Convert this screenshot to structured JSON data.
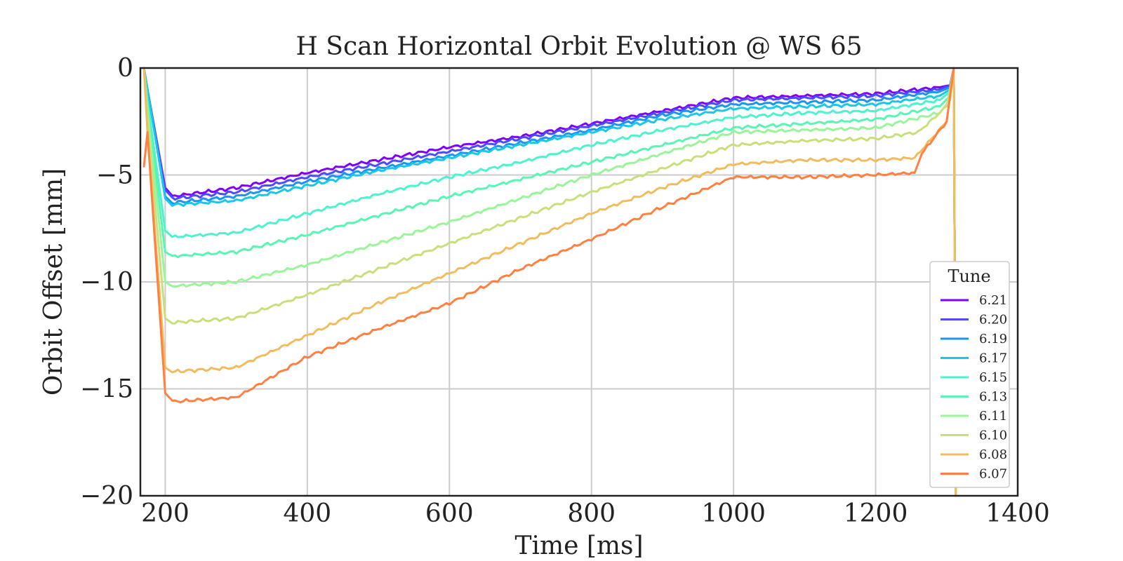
{
  "chart_data": {
    "type": "line",
    "title": "H Scan Horizontal Orbit Evolution @ WS 65",
    "xlabel": "Time [ms]",
    "ylabel": "Orbit Offset [mm]",
    "xlim": [
      165,
      1400
    ],
    "ylim": [
      -20,
      0
    ],
    "xticks": [
      200,
      400,
      600,
      800,
      1000,
      1200,
      1400
    ],
    "yticks": [
      0,
      -5,
      -10,
      -15,
      -20
    ],
    "xtick_labels": [
      "200",
      "400",
      "600",
      "800",
      "1000",
      "1200",
      "1400"
    ],
    "ytick_labels": [
      "0",
      "−5",
      "−10",
      "−15",
      "−20"
    ],
    "grid": true,
    "legend": {
      "title": "Tune",
      "position": "lower-right"
    },
    "series": [
      {
        "name": "6.21",
        "color": "#8000ff",
        "x": [
          170,
          175,
          200,
          210,
          300,
          400,
          500,
          600,
          700,
          800,
          900,
          1000,
          1100,
          1200,
          1290,
          1305,
          1310,
          1313
        ],
        "y": [
          0,
          -1.0,
          -5.6,
          -6.0,
          -5.6,
          -4.9,
          -4.3,
          -3.7,
          -3.2,
          -2.6,
          -2.0,
          -1.4,
          -1.3,
          -1.2,
          -0.9,
          -0.8,
          0,
          -20
        ]
      },
      {
        "name": "6.20",
        "color": "#4c4cff",
        "x": [
          170,
          175,
          200,
          210,
          300,
          400,
          500,
          600,
          700,
          800,
          900,
          1000,
          1100,
          1200,
          1290,
          1305,
          1310,
          1313
        ],
        "y": [
          0,
          -1.0,
          -5.7,
          -6.1,
          -5.8,
          -5.1,
          -4.5,
          -3.9,
          -3.3,
          -2.7,
          -2.1,
          -1.5,
          -1.4,
          -1.3,
          -1.0,
          -0.8,
          0,
          -20
        ]
      },
      {
        "name": "6.19",
        "color": "#1996f3",
        "x": [
          170,
          175,
          200,
          210,
          300,
          400,
          500,
          600,
          700,
          800,
          900,
          1000,
          1100,
          1200,
          1290,
          1305,
          1310,
          1313
        ],
        "y": [
          0,
          -1.0,
          -6.0,
          -6.3,
          -6.0,
          -5.3,
          -4.7,
          -4.1,
          -3.5,
          -2.9,
          -2.2,
          -1.7,
          -1.6,
          -1.5,
          -1.1,
          -0.9,
          0,
          -20
        ]
      },
      {
        "name": "6.17",
        "color": "#1ac7e6",
        "x": [
          170,
          175,
          200,
          210,
          300,
          400,
          500,
          600,
          700,
          800,
          900,
          1000,
          1100,
          1200,
          1290,
          1305,
          1310,
          1313
        ],
        "y": [
          0,
          -1.0,
          -6.1,
          -6.4,
          -6.2,
          -5.5,
          -4.8,
          -4.2,
          -3.6,
          -3.0,
          -2.4,
          -1.9,
          -1.8,
          -1.7,
          -1.3,
          -1.0,
          0,
          -20
        ]
      },
      {
        "name": "6.15",
        "color": "#4df3ce",
        "x": [
          170,
          175,
          200,
          210,
          300,
          400,
          500,
          600,
          700,
          800,
          900,
          1000,
          1100,
          1200,
          1290,
          1305,
          1310,
          1313
        ],
        "y": [
          0,
          -1.5,
          -7.6,
          -7.9,
          -7.7,
          -6.8,
          -5.9,
          -5.1,
          -4.4,
          -3.6,
          -2.9,
          -2.3,
          -2.1,
          -2.0,
          -1.5,
          -1.1,
          0,
          -20
        ]
      },
      {
        "name": "6.13",
        "color": "#59f5b4",
        "x": [
          170,
          175,
          200,
          210,
          300,
          400,
          500,
          600,
          700,
          800,
          900,
          1000,
          1100,
          1200,
          1290,
          1305,
          1310,
          1313
        ],
        "y": [
          0,
          -1.8,
          -8.6,
          -8.8,
          -8.6,
          -7.8,
          -6.9,
          -6.0,
          -5.2,
          -4.4,
          -3.6,
          -2.8,
          -2.6,
          -2.4,
          -1.8,
          -1.3,
          0,
          -20
        ]
      },
      {
        "name": "6.11",
        "color": "#99f59a",
        "x": [
          170,
          175,
          200,
          210,
          300,
          400,
          500,
          600,
          700,
          800,
          900,
          1000,
          1100,
          1200,
          1290,
          1305,
          1310,
          1313
        ],
        "y": [
          0,
          -2.0,
          -10.0,
          -10.2,
          -10.0,
          -9.2,
          -8.2,
          -7.2,
          -6.1,
          -5.0,
          -4.0,
          -3.0,
          -2.9,
          -2.8,
          -2.1,
          -1.5,
          0,
          -20
        ]
      },
      {
        "name": "6.10",
        "color": "#c8e07a",
        "x": [
          170,
          175,
          200,
          210,
          300,
          400,
          500,
          600,
          700,
          800,
          900,
          1000,
          1100,
          1200,
          1260,
          1300,
          1310,
          1313
        ],
        "y": [
          0,
          -2.5,
          -11.7,
          -11.9,
          -11.7,
          -10.6,
          -9.4,
          -8.2,
          -7.0,
          -5.8,
          -4.7,
          -3.6,
          -3.4,
          -3.3,
          -3.0,
          -1.8,
          0,
          -20
        ]
      },
      {
        "name": "6.08",
        "color": "#f2bb5e",
        "x": [
          170,
          175,
          200,
          210,
          300,
          400,
          500,
          600,
          700,
          800,
          900,
          1000,
          1100,
          1200,
          1255,
          1300,
          1310,
          1313
        ],
        "y": [
          0,
          -3.0,
          -14.0,
          -14.2,
          -14.0,
          -12.5,
          -11.0,
          -9.6,
          -8.2,
          -6.8,
          -5.6,
          -4.5,
          -4.3,
          -4.3,
          -4.2,
          -2.5,
          0,
          -20
        ]
      },
      {
        "name": "6.07",
        "color": "#ff8040",
        "x": [
          170,
          175,
          200,
          210,
          300,
          400,
          500,
          600,
          700,
          800,
          900,
          1000,
          1100,
          1200,
          1255,
          1265,
          1300,
          1310
        ],
        "y": [
          -4.6,
          -3.0,
          -15.2,
          -15.6,
          -15.4,
          -13.5,
          -12.2,
          -11.0,
          -9.4,
          -8.0,
          -6.5,
          -5.1,
          -5.1,
          -5.0,
          -4.9,
          -4.0,
          -2.5,
          0
        ]
      }
    ]
  }
}
